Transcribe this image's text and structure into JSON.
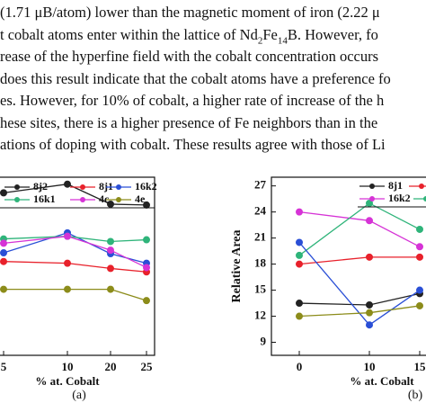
{
  "text_lines": [
    [
      {
        "t": "(1.71 μB/atom) lower than the magnetic moment of iron (2.22 μ"
      }
    ],
    [
      {
        "t": "t cobalt atoms enter within the lattice of Nd"
      },
      {
        "t": "2",
        "sub": true
      },
      {
        "t": "Fe"
      },
      {
        "t": "14",
        "sub": true
      },
      {
        "t": "B. However, fo"
      }
    ],
    [
      {
        "t": "rease of the hyperfine field with the cobalt concentration occurs"
      }
    ],
    [
      {
        "t": "does this result indicate that the cobalt atoms have a preference fo"
      }
    ],
    [
      {
        "t": "es. However, for 10% of cobalt, a higher rate of increase of the h"
      }
    ],
    [
      {
        "t": "hese sites, there is a higher presence of Fe neighbors than in the"
      }
    ],
    [
      {
        "t": "ations of doping with cobalt. These results agree with those of Li"
      }
    ]
  ],
  "chart_data": [
    {
      "type": "line",
      "x_label": "% at. Cobalt",
      "panel_label": "(a)",
      "categories": [
        "5",
        "10",
        "20",
        "25"
      ],
      "ylim": [
        7.5,
        28
      ],
      "series": [
        {
          "name": "8j2",
          "color": "#222222",
          "values": [
            26.2,
            27.2,
            24.9,
            24.8
          ]
        },
        {
          "name": "8j1",
          "color": "#e8212b",
          "values": [
            18.3,
            18.1,
            17.5,
            17.1
          ]
        },
        {
          "name": "16k2",
          "color": "#2a4fd6",
          "values": [
            19.3,
            21.6,
            19.2,
            18.1
          ]
        },
        {
          "name": "16k1",
          "color": "#2fb47a",
          "values": [
            20.9,
            21.2,
            20.6,
            20.8
          ]
        },
        {
          "name": "4c",
          "color": "#d633d6",
          "values": [
            20.4,
            21.2,
            19.6,
            17.6
          ]
        },
        {
          "name": "4e",
          "color": "#8c8c1a",
          "values": [
            15.1,
            15.1,
            15.1,
            13.8
          ]
        }
      ]
    },
    {
      "type": "line",
      "x_label": "% at. Cobalt",
      "y_label": "Relative Area",
      "panel_label": "(b)",
      "categories": [
        "0",
        "10",
        "15"
      ],
      "ylim": [
        7.5,
        28
      ],
      "yticks": [
        9,
        12,
        15,
        18,
        21,
        24,
        27
      ],
      "series": [
        {
          "name": "8j1",
          "color": "#222222",
          "values": [
            13.5,
            13.3,
            14.6
          ]
        },
        {
          "color": "#e8212b",
          "values": [
            18,
            18.8,
            18.8
          ]
        },
        {
          "name": "16k2",
          "color": "#d633d6",
          "values": [
            24,
            23,
            20
          ]
        },
        {
          "color": "#2fb47a",
          "values": [
            19,
            25,
            22
          ]
        },
        {
          "color": "#2a4fd6",
          "values": [
            20.5,
            11,
            15
          ]
        },
        {
          "color": "#8c8c1a",
          "values": [
            12,
            12.4,
            13.2
          ]
        }
      ]
    }
  ]
}
